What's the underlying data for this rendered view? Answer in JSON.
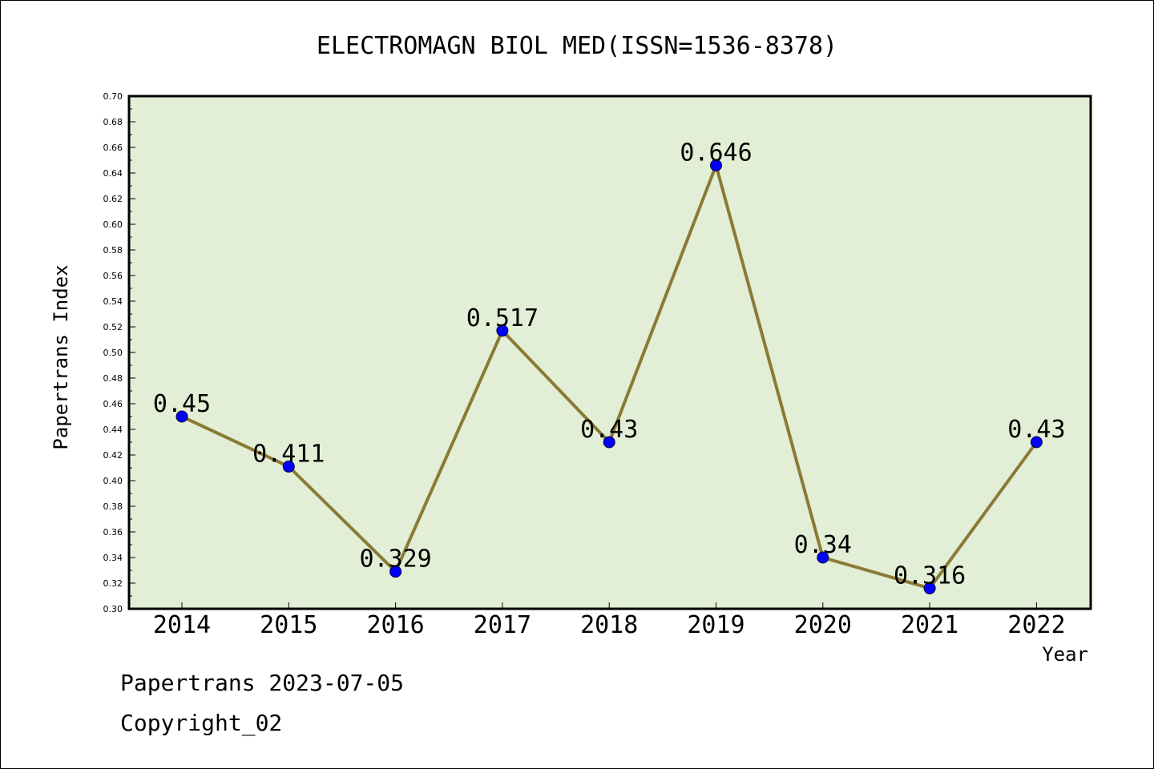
{
  "chart_data": {
    "type": "line",
    "title": "ELECTROMAGN BIOL MED(ISSN=1536-8378)",
    "xlabel": "Year",
    "ylabel": "Papertrans Index",
    "categories": [
      "2014",
      "2015",
      "2016",
      "2017",
      "2018",
      "2019",
      "2020",
      "2021",
      "2022"
    ],
    "series": [
      {
        "values": [
          0.45,
          0.411,
          0.329,
          0.517,
          0.43,
          0.646,
          0.34,
          0.316,
          0.43
        ],
        "data_labels": [
          "0.45",
          "0.411",
          "0.329",
          "0.517",
          "0.43",
          "0.646",
          "0.34",
          "0.316",
          "0.43"
        ]
      }
    ],
    "ylim": [
      0.3,
      0.7
    ],
    "yticks": [
      "0.30",
      "0.32",
      "0.34",
      "0.36",
      "0.38",
      "0.40",
      "0.42",
      "0.44",
      "0.46",
      "0.48",
      "0.50",
      "0.52",
      "0.54",
      "0.56",
      "0.58",
      "0.60",
      "0.62",
      "0.64",
      "0.66",
      "0.68",
      "0.70"
    ],
    "grid": false,
    "legend": "none",
    "colors": {
      "plot_background": "#e2efd6",
      "line": "#8b7a35",
      "marker": "#0000ff"
    }
  },
  "footer": {
    "line1": "Papertrans 2023-07-05",
    "line2": "Copyright_02"
  }
}
